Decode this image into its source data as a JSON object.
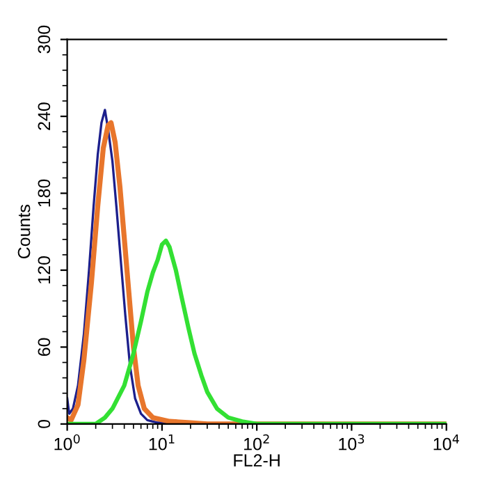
{
  "chart_data": {
    "type": "line",
    "xlabel": "FL2-H",
    "ylabel": "Counts",
    "log": "x",
    "grid": false,
    "marker": "none",
    "line_style": "solid",
    "xlim": [
      1,
      10000
    ],
    "ylim": [
      0,
      300
    ],
    "xticks": [
      {
        "value": 1,
        "label": "10$^{0}$"
      },
      {
        "value": 10,
        "label": "10$^{1}$"
      },
      {
        "value": 100,
        "label": "10$^{2}$"
      },
      {
        "value": 1000,
        "label": "10$^{3}$"
      },
      {
        "value": 10000,
        "label": "10$^{4}$"
      }
    ],
    "yticks": [
      0,
      60,
      120,
      180,
      240,
      300
    ],
    "series": [
      {
        "color": "#1c1f8c",
        "x": [
          1.0,
          1.05,
          1.15,
          1.3,
          1.5,
          1.7,
          1.9,
          2.1,
          2.3,
          2.5,
          2.7,
          3.0,
          3.3,
          3.7,
          4.1,
          4.6,
          5.2,
          6,
          7,
          9,
          15
        ],
        "values": [
          20,
          8,
          12,
          30,
          70,
          120,
          170,
          210,
          235,
          245,
          230,
          205,
          170,
          125,
          85,
          45,
          20,
          8,
          3,
          1,
          1
        ]
      },
      {
        "color": "#e8762c",
        "x": [
          1.0,
          1.1,
          1.3,
          1.5,
          1.8,
          2.1,
          2.4,
          2.7,
          2.9,
          3.2,
          3.6,
          4.0,
          4.5,
          5.0,
          5.6,
          6.5,
          8,
          12,
          20,
          30,
          10000
        ],
        "values": [
          5,
          3,
          15,
          50,
          110,
          170,
          215,
          233,
          235,
          220,
          185,
          145,
          100,
          60,
          30,
          12,
          5,
          2,
          1,
          0,
          0
        ]
      },
      {
        "color": "#33e033",
        "x": [
          1,
          2,
          2.5,
          3,
          4,
          5,
          6,
          7,
          8,
          9,
          10,
          11,
          12,
          14,
          16,
          19,
          22,
          26,
          30,
          38,
          50,
          70,
          100,
          10000
        ],
        "values": [
          0,
          0,
          5,
          12,
          30,
          55,
          80,
          103,
          118,
          128,
          140,
          143,
          138,
          120,
          100,
          75,
          55,
          38,
          25,
          12,
          5,
          2,
          0,
          0
        ]
      }
    ]
  }
}
